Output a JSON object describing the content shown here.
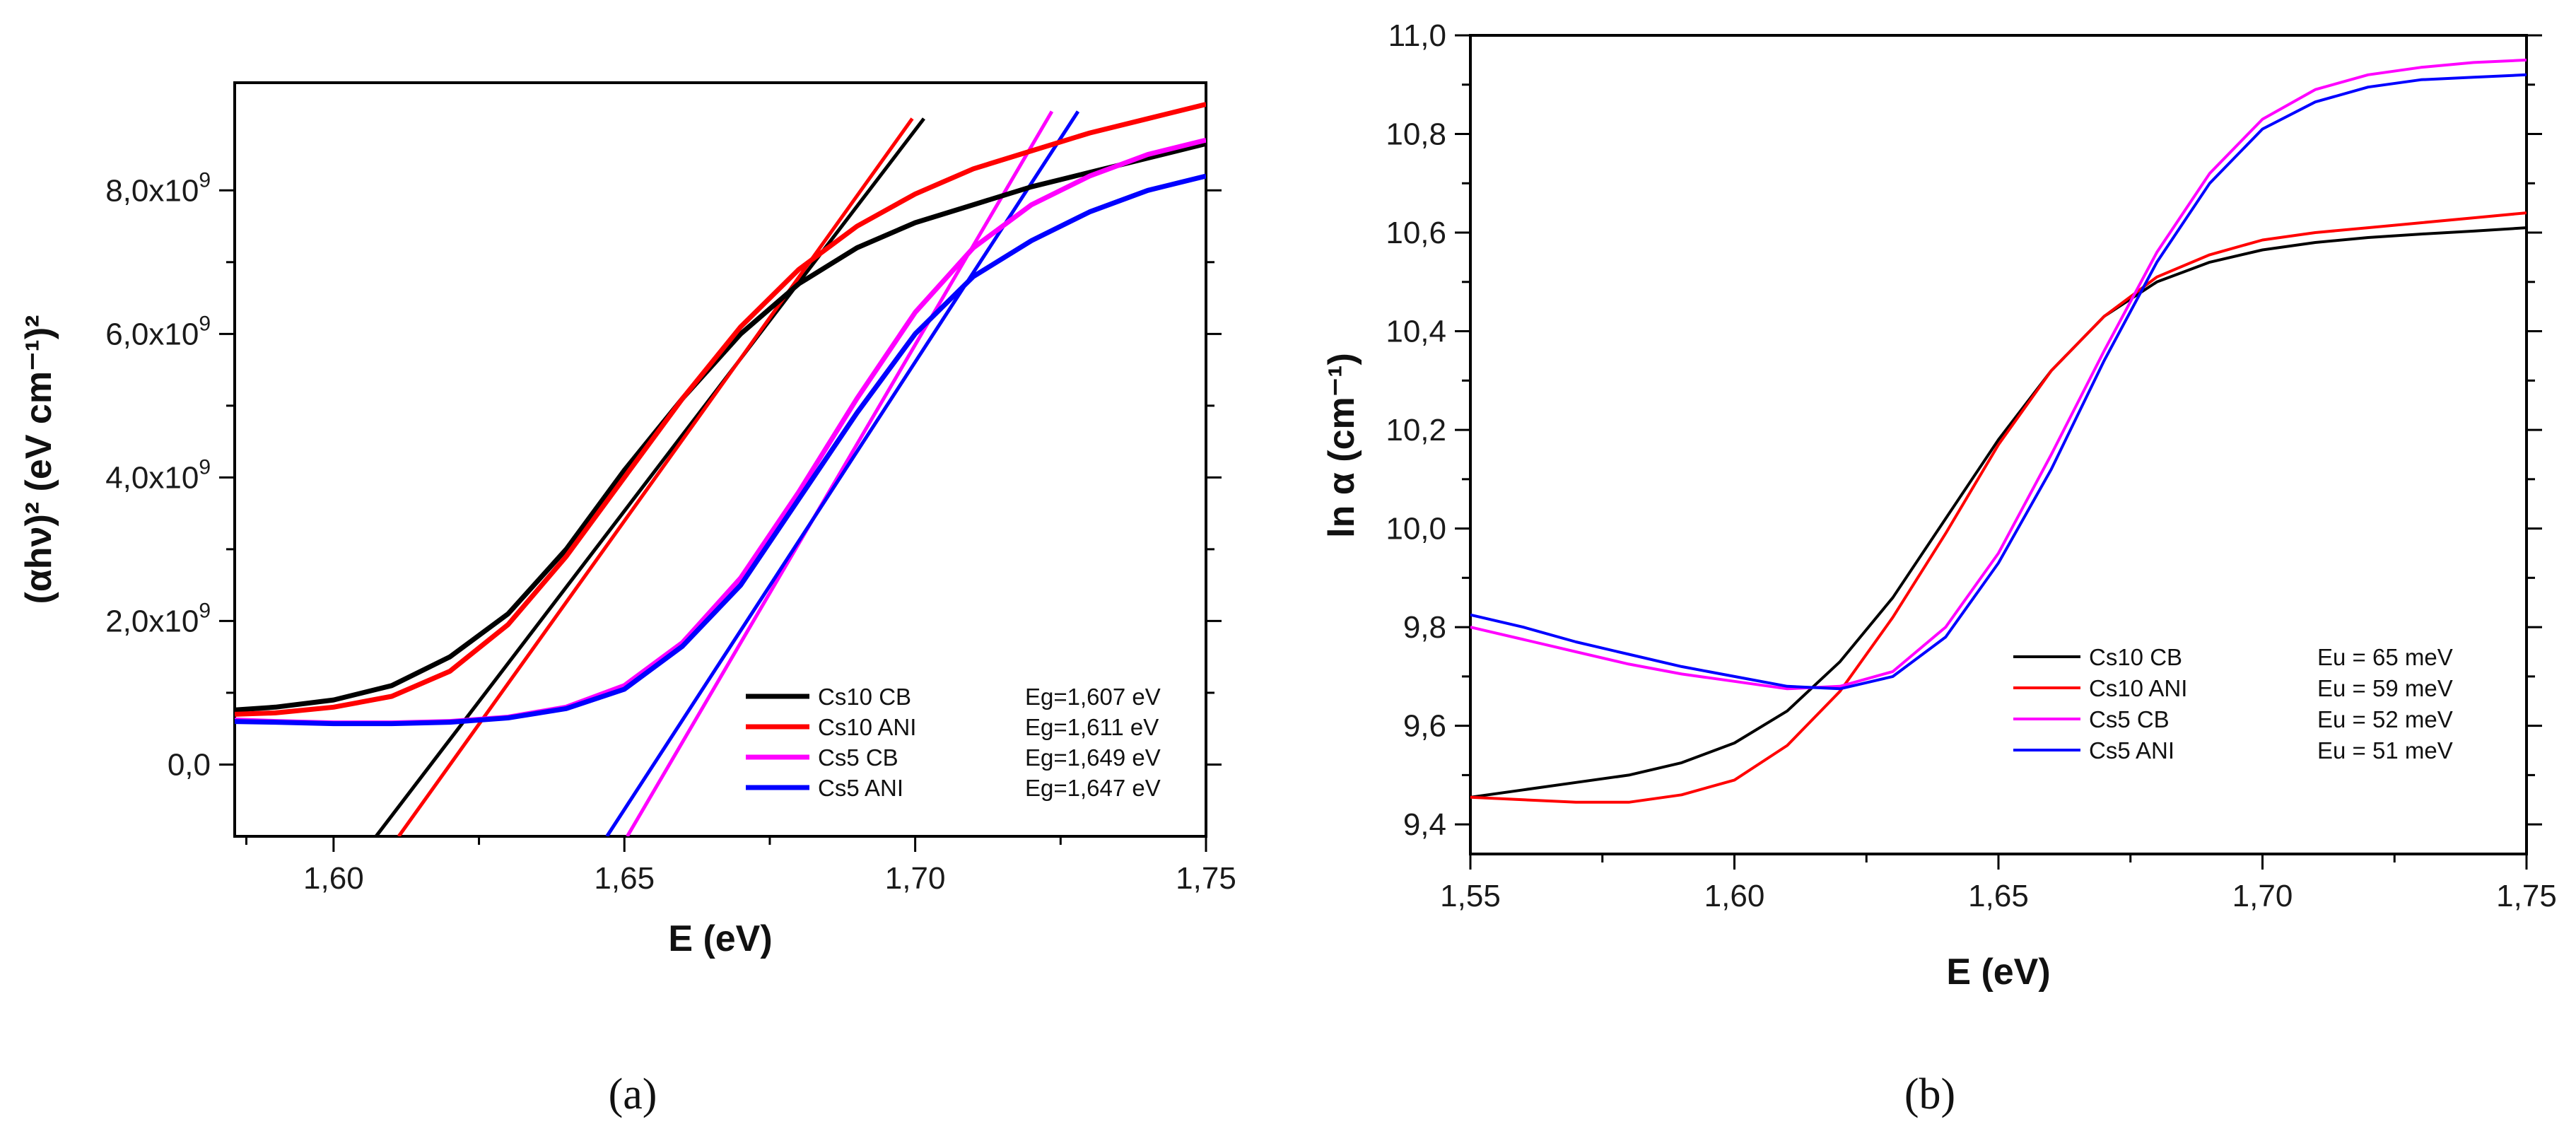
{
  "chart_data": [
    {
      "type": "line",
      "caption": "(a)",
      "xlabel": "E (eV)",
      "ylabel": "(αhν)² (eV cm⁻¹)²",
      "xlim": [
        1.583,
        1.75
      ],
      "ylim": [
        -1000000000.0,
        9500000000.0
      ],
      "xticks": [
        1.6,
        1.65,
        1.7,
        1.75
      ],
      "xtick_labels": [
        "1,60",
        "1,65",
        "1,70",
        "1,75"
      ],
      "yticks": [
        0,
        2000000000.0,
        4000000000.0,
        6000000000.0,
        8000000000.0
      ],
      "ytick_labels": [
        {
          "mant": "0,0",
          "exp": ""
        },
        {
          "mant": "2,0x10",
          "exp": "9"
        },
        {
          "mant": "4,0x10",
          "exp": "9"
        },
        {
          "mant": "6,0x10",
          "exp": "9"
        },
        {
          "mant": "8,0x10",
          "exp": "9"
        }
      ],
      "legend_position": "bottom-right",
      "series": [
        {
          "name": "Cs10 CB",
          "note": "Eg=1,607 eV",
          "color": "#000000",
          "x": [
            1.583,
            1.59,
            1.6,
            1.61,
            1.62,
            1.63,
            1.64,
            1.65,
            1.66,
            1.67,
            1.68,
            1.69,
            1.7,
            1.71,
            1.72,
            1.73,
            1.74,
            1.75
          ],
          "y": [
            760000000.0,
            800000000.0,
            900000000.0,
            1100000000.0,
            1500000000.0,
            2100000000.0,
            3000000000.0,
            4100000000.0,
            5100000000.0,
            6000000000.0,
            6700000000.0,
            7200000000.0,
            7550000000.0,
            7800000000.0,
            8050000000.0,
            8250000000.0,
            8450000000.0,
            8650000000.0
          ],
          "fit": {
            "x": [
              1.6073,
              1.7015
            ],
            "y": [
              -1000000000.0,
              9000000000.0
            ]
          }
        },
        {
          "name": "Cs10 ANI",
          "note": "Eg=1,611 eV",
          "color": "#ff0000",
          "x": [
            1.583,
            1.59,
            1.6,
            1.61,
            1.62,
            1.63,
            1.64,
            1.65,
            1.66,
            1.67,
            1.68,
            1.69,
            1.7,
            1.71,
            1.72,
            1.73,
            1.74,
            1.75
          ],
          "y": [
            700000000.0,
            720000000.0,
            800000000.0,
            950000000.0,
            1300000000.0,
            1950000000.0,
            2900000000.0,
            4000000000.0,
            5100000000.0,
            6100000000.0,
            6900000000.0,
            7500000000.0,
            7950000000.0,
            8300000000.0,
            8550000000.0,
            8800000000.0,
            9000000000.0,
            9200000000.0
          ],
          "fit": {
            "x": [
              1.6112,
              1.6995
            ],
            "y": [
              -1000000000.0,
              9000000000.0
            ]
          }
        },
        {
          "name": "Cs5 CB",
          "note": "Eg=1,649 eV",
          "color": "#ff00ff",
          "x": [
            1.583,
            1.59,
            1.6,
            1.61,
            1.62,
            1.63,
            1.64,
            1.65,
            1.66,
            1.67,
            1.68,
            1.69,
            1.7,
            1.71,
            1.72,
            1.73,
            1.74,
            1.75
          ],
          "y": [
            620000000.0,
            600000000.0,
            580000000.0,
            580000000.0,
            600000000.0,
            660000000.0,
            800000000.0,
            1100000000.0,
            1700000000.0,
            2600000000.0,
            3800000000.0,
            5100000000.0,
            6300000000.0,
            7200000000.0,
            7800000000.0,
            8200000000.0,
            8500000000.0,
            8700000000.0
          ],
          "fit": {
            "x": [
              1.6505,
              1.7235
            ],
            "y": [
              -1000000000.0,
              9100000000.0
            ]
          }
        },
        {
          "name": "Cs5 ANI",
          "note": "Eg=1,647 eV",
          "color": "#0000ff",
          "x": [
            1.583,
            1.59,
            1.6,
            1.61,
            1.62,
            1.63,
            1.64,
            1.65,
            1.66,
            1.67,
            1.68,
            1.69,
            1.7,
            1.71,
            1.72,
            1.73,
            1.74,
            1.75
          ],
          "y": [
            600000000.0,
            590000000.0,
            570000000.0,
            570000000.0,
            590000000.0,
            650000000.0,
            780000000.0,
            1050000000.0,
            1650000000.0,
            2500000000.0,
            3700000000.0,
            4900000000.0,
            6000000000.0,
            6800000000.0,
            7300000000.0,
            7700000000.0,
            8000000000.0,
            8200000000.0
          ],
          "fit": {
            "x": [
              1.647,
              1.728
            ],
            "y": [
              -1000000000.0,
              9100000000.0
            ]
          }
        }
      ]
    },
    {
      "type": "line",
      "caption": "(b)",
      "xlabel": "E (eV)",
      "ylabel": "ln α (cm⁻¹)",
      "xlim": [
        1.55,
        1.75
      ],
      "ylim": [
        9.34,
        11.0
      ],
      "xticks": [
        1.55,
        1.6,
        1.65,
        1.7,
        1.75
      ],
      "xtick_labels": [
        "1,55",
        "1,60",
        "1,65",
        "1,70",
        "1,75"
      ],
      "yticks": [
        9.4,
        9.6,
        9.8,
        10.0,
        10.2,
        10.4,
        10.6,
        10.8,
        11.0
      ],
      "ytick_labels": [
        "9,4",
        "9,6",
        "9,8",
        "10,0",
        "10,2",
        "10,4",
        "10,6",
        "10,8",
        "11,0"
      ],
      "legend_position": "bottom-right",
      "series": [
        {
          "name": "Cs10 CB",
          "note": "Eu = 65 meV",
          "color": "#000000",
          "x": [
            1.55,
            1.56,
            1.57,
            1.58,
            1.59,
            1.6,
            1.61,
            1.62,
            1.63,
            1.64,
            1.65,
            1.66,
            1.67,
            1.68,
            1.69,
            1.7,
            1.71,
            1.72,
            1.73,
            1.74,
            1.75
          ],
          "y": [
            9.455,
            9.47,
            9.485,
            9.5,
            9.525,
            9.565,
            9.63,
            9.73,
            9.86,
            10.02,
            10.18,
            10.32,
            10.43,
            10.5,
            10.54,
            10.565,
            10.58,
            10.59,
            10.597,
            10.603,
            10.61
          ]
        },
        {
          "name": "Cs10 ANI",
          "note": "Eu = 59 meV",
          "color": "#ff0000",
          "x": [
            1.55,
            1.56,
            1.57,
            1.58,
            1.59,
            1.6,
            1.61,
            1.62,
            1.63,
            1.64,
            1.65,
            1.66,
            1.67,
            1.68,
            1.69,
            1.7,
            1.71,
            1.72,
            1.73,
            1.74,
            1.75
          ],
          "y": [
            9.455,
            9.45,
            9.445,
            9.445,
            9.46,
            9.49,
            9.56,
            9.67,
            9.82,
            9.99,
            10.17,
            10.32,
            10.43,
            10.51,
            10.555,
            10.585,
            10.6,
            10.61,
            10.62,
            10.63,
            10.64
          ]
        },
        {
          "name": "Cs5 CB",
          "note": "Eu = 52 meV",
          "color": "#ff00ff",
          "x": [
            1.55,
            1.56,
            1.57,
            1.58,
            1.59,
            1.6,
            1.61,
            1.62,
            1.63,
            1.64,
            1.65,
            1.66,
            1.67,
            1.68,
            1.69,
            1.7,
            1.71,
            1.72,
            1.73,
            1.74,
            1.75
          ],
          "y": [
            9.8,
            9.775,
            9.75,
            9.725,
            9.705,
            9.69,
            9.675,
            9.68,
            9.71,
            9.8,
            9.95,
            10.15,
            10.36,
            10.56,
            10.72,
            10.83,
            10.89,
            10.92,
            10.935,
            10.945,
            10.95
          ]
        },
        {
          "name": "Cs5 ANI",
          "note": "Eu = 51 meV",
          "color": "#0000ff",
          "x": [
            1.55,
            1.56,
            1.57,
            1.58,
            1.59,
            1.6,
            1.61,
            1.62,
            1.63,
            1.64,
            1.65,
            1.66,
            1.67,
            1.68,
            1.69,
            1.7,
            1.71,
            1.72,
            1.73,
            1.74,
            1.75
          ],
          "y": [
            9.825,
            9.8,
            9.77,
            9.745,
            9.72,
            9.7,
            9.68,
            9.675,
            9.7,
            9.78,
            9.93,
            10.12,
            10.34,
            10.54,
            10.7,
            10.81,
            10.865,
            10.895,
            10.91,
            10.915,
            10.92
          ]
        }
      ]
    }
  ]
}
